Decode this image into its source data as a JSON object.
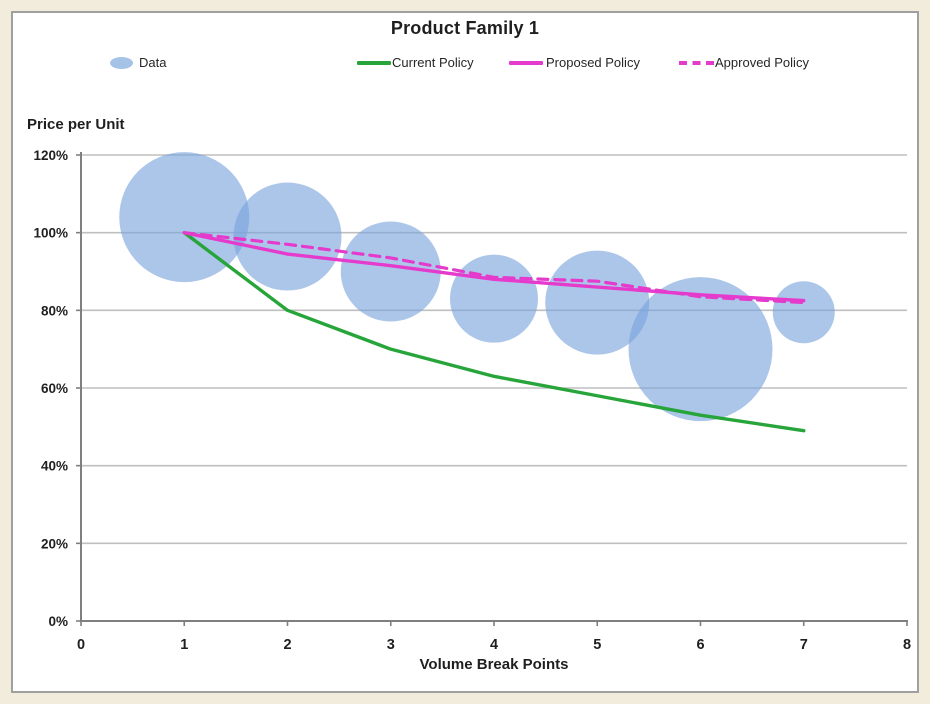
{
  "window": {
    "background_color": "#F1ECDB",
    "panel_background": "#FFFFFF",
    "panel_border_color": "#A0A0A0"
  },
  "chart_data": {
    "type": "bubble",
    "title": "Product Family 1",
    "legend_position": "top",
    "grid": true,
    "x_axis": {
      "title": "Volume Break Points",
      "lim": [
        0,
        8
      ],
      "ticks": [
        0,
        1,
        2,
        3,
        4,
        5,
        6,
        7,
        8
      ]
    },
    "y_axis": {
      "title": "Price per Unit",
      "lim": [
        0,
        120
      ],
      "tick_values": [
        0,
        20,
        40,
        60,
        80,
        100,
        120
      ],
      "tick_labels": [
        "0%",
        "20%",
        "40%",
        "60%",
        "80%",
        "100%",
        "120%"
      ]
    },
    "colors": {
      "bubble_fill": "rgba(121,163,219,0.62)",
      "bubble_legend": "#A4C3E6",
      "current_policy": "#27A53B",
      "proposed_policy": "#E53BCD",
      "approved_policy": "#E53BCD",
      "gridline": "#BFBFBF",
      "axis": "#7F7F7F",
      "tick_text": "#1F1F1F"
    },
    "bubbles": {
      "name": "Data",
      "points": [
        {
          "x": 1,
          "y": 104,
          "r": 65
        },
        {
          "x": 2,
          "y": 99,
          "r": 54
        },
        {
          "x": 3,
          "y": 90,
          "r": 50
        },
        {
          "x": 4,
          "y": 83,
          "r": 44
        },
        {
          "x": 5,
          "y": 82,
          "r": 52
        },
        {
          "x": 6,
          "y": 70,
          "r": 72
        },
        {
          "x": 7,
          "y": 79.5,
          "r": 31
        }
      ]
    },
    "series": [
      {
        "name": "Current Policy",
        "dash": "solid",
        "color": "#27A53B",
        "x": [
          1,
          2,
          3,
          4,
          5,
          6,
          7
        ],
        "values": [
          100,
          80,
          70,
          63,
          58,
          53,
          49
        ]
      },
      {
        "name": "Proposed Policy",
        "dash": "solid",
        "color": "#E53BCD",
        "x": [
          1,
          2,
          3,
          4,
          5,
          6,
          7
        ],
        "values": [
          100,
          94.5,
          91.5,
          88,
          86,
          84,
          82.5
        ]
      },
      {
        "name": "Approved Policy",
        "dash": "dashed",
        "color": "#E53BCD",
        "x": [
          1,
          2,
          3,
          4,
          5,
          6,
          7
        ],
        "values": [
          100,
          97,
          93.5,
          88.5,
          87.5,
          83.5,
          82
        ]
      }
    ]
  }
}
